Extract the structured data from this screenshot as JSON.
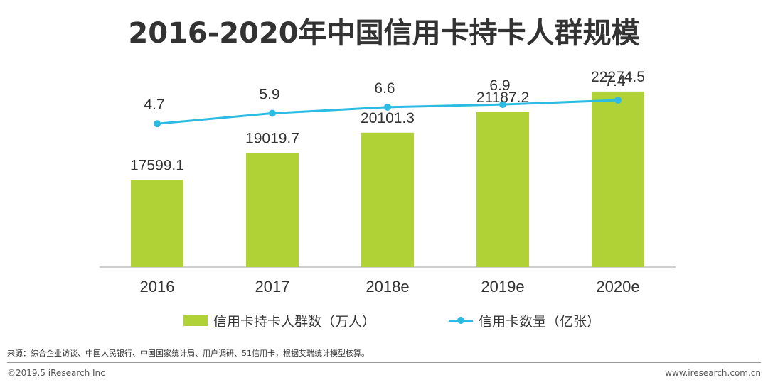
{
  "colors": {
    "bar": "#b0d236",
    "line": "#2bbbe3",
    "text": "#333333",
    "axis": "#bfbfbf"
  },
  "chart_data": {
    "type": "bar+line",
    "title": "2016-2020年中国信用卡持卡人群规模",
    "categories": [
      "2016",
      "2017",
      "2018e",
      "2019e",
      "2020e"
    ],
    "series": [
      {
        "name": "信用卡持卡人群数（万人）",
        "type": "bar",
        "values": [
          17599.1,
          19019.7,
          20101.3,
          21187.2,
          22274.5
        ],
        "labels": [
          "17599.1",
          "19019.7",
          "20101.3",
          "21187.2",
          "22274.5"
        ]
      },
      {
        "name": "信用卡数量（亿张）",
        "type": "line",
        "values": [
          4.7,
          5.9,
          6.6,
          6.9,
          7.4
        ],
        "labels": [
          "4.7",
          "5.9",
          "6.6",
          "6.9",
          "7.4"
        ]
      }
    ],
    "xlabel": "",
    "ylabel": "",
    "grid": false,
    "legend": "bottom"
  },
  "legend": {
    "bar_label": "信用卡持卡人群数（万人）",
    "line_label": "信用卡数量（亿张）"
  },
  "footer": {
    "source": "来源：综合企业访谈、中国人民银行、中国国家统计局、用户调研、51信用卡，根据艾瑞统计模型核算。",
    "copyright": "©2019.5 iResearch Inc",
    "site": "www.iresearch.com.cn"
  }
}
